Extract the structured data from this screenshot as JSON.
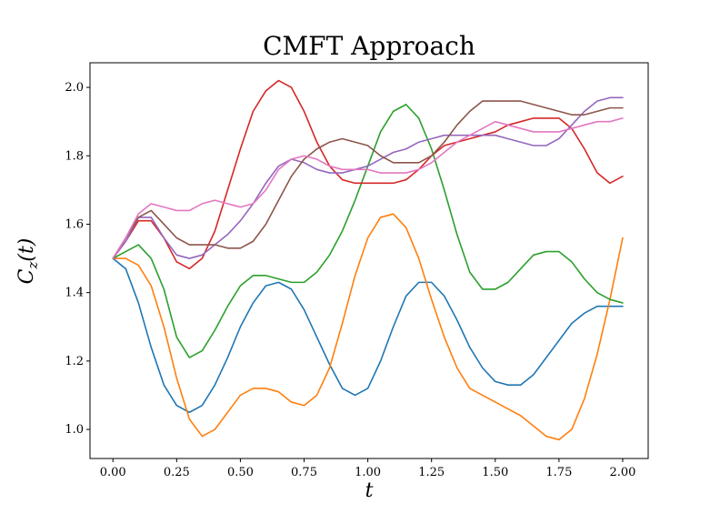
{
  "chart_data": {
    "type": "line",
    "title": "CMFT Approach",
    "xlabel": "t",
    "ylabel_main": "C",
    "ylabel_sub": "z",
    "ylabel_arg": "(t)",
    "xlim": [
      -0.09,
      2.1
    ],
    "ylim": [
      0.915,
      2.072
    ],
    "xticks": [
      0.0,
      0.25,
      0.5,
      0.75,
      1.0,
      1.25,
      1.5,
      1.75,
      2.0
    ],
    "xtick_labels": [
      "0.00",
      "0.25",
      "0.50",
      "0.75",
      "1.00",
      "1.25",
      "1.50",
      "1.75",
      "2.00"
    ],
    "yticks": [
      1.0,
      1.2,
      1.4,
      1.6,
      1.8,
      2.0
    ],
    "ytick_labels": [
      "1.0",
      "1.2",
      "1.4",
      "1.6",
      "1.8",
      "2.0"
    ],
    "grid": false,
    "legend": "none",
    "series": [
      {
        "color": "#1f77b4",
        "x": [
          0.0,
          0.05,
          0.1,
          0.15,
          0.2,
          0.25,
          0.3,
          0.35,
          0.4,
          0.45,
          0.5,
          0.55,
          0.6,
          0.65,
          0.7,
          0.75,
          0.8,
          0.85,
          0.9,
          0.95,
          1.0,
          1.05,
          1.1,
          1.15,
          1.2,
          1.25,
          1.3,
          1.35,
          1.4,
          1.45,
          1.5,
          1.55,
          1.6,
          1.65,
          1.7,
          1.75,
          1.8,
          1.85,
          1.9,
          1.95,
          2.0
        ],
        "y": [
          1.5,
          1.47,
          1.37,
          1.24,
          1.13,
          1.07,
          1.05,
          1.07,
          1.13,
          1.21,
          1.3,
          1.37,
          1.42,
          1.43,
          1.41,
          1.35,
          1.27,
          1.19,
          1.12,
          1.1,
          1.12,
          1.2,
          1.3,
          1.39,
          1.43,
          1.43,
          1.39,
          1.32,
          1.24,
          1.18,
          1.14,
          1.13,
          1.13,
          1.16,
          1.21,
          1.26,
          1.31,
          1.34,
          1.36,
          1.36,
          1.36
        ]
      },
      {
        "color": "#ff7f0e",
        "x": [
          0.0,
          0.05,
          0.1,
          0.15,
          0.2,
          0.25,
          0.3,
          0.35,
          0.4,
          0.45,
          0.5,
          0.55,
          0.6,
          0.65,
          0.7,
          0.75,
          0.8,
          0.85,
          0.9,
          0.95,
          1.0,
          1.05,
          1.1,
          1.15,
          1.2,
          1.25,
          1.3,
          1.35,
          1.4,
          1.45,
          1.5,
          1.55,
          1.6,
          1.65,
          1.7,
          1.75,
          1.8,
          1.85,
          1.9,
          1.95,
          2.0
        ],
        "y": [
          1.5,
          1.5,
          1.48,
          1.42,
          1.3,
          1.15,
          1.03,
          0.98,
          1.0,
          1.05,
          1.1,
          1.12,
          1.12,
          1.11,
          1.08,
          1.07,
          1.1,
          1.18,
          1.31,
          1.45,
          1.56,
          1.62,
          1.63,
          1.59,
          1.5,
          1.38,
          1.27,
          1.18,
          1.12,
          1.1,
          1.08,
          1.06,
          1.04,
          1.01,
          0.98,
          0.97,
          1.0,
          1.09,
          1.22,
          1.38,
          1.56
        ]
      },
      {
        "color": "#2ca02c",
        "x": [
          0.0,
          0.05,
          0.1,
          0.15,
          0.2,
          0.25,
          0.3,
          0.35,
          0.4,
          0.45,
          0.5,
          0.55,
          0.6,
          0.65,
          0.7,
          0.75,
          0.8,
          0.85,
          0.9,
          0.95,
          1.0,
          1.05,
          1.1,
          1.15,
          1.2,
          1.25,
          1.3,
          1.35,
          1.4,
          1.45,
          1.5,
          1.55,
          1.6,
          1.65,
          1.7,
          1.75,
          1.8,
          1.85,
          1.9,
          1.95,
          2.0
        ],
        "y": [
          1.5,
          1.52,
          1.54,
          1.5,
          1.41,
          1.27,
          1.21,
          1.23,
          1.29,
          1.36,
          1.42,
          1.45,
          1.45,
          1.44,
          1.43,
          1.43,
          1.46,
          1.51,
          1.58,
          1.67,
          1.77,
          1.87,
          1.93,
          1.95,
          1.91,
          1.82,
          1.7,
          1.57,
          1.46,
          1.41,
          1.41,
          1.43,
          1.47,
          1.51,
          1.52,
          1.52,
          1.49,
          1.44,
          1.4,
          1.38,
          1.37
        ]
      },
      {
        "color": "#d62728",
        "x": [
          0.0,
          0.05,
          0.1,
          0.15,
          0.2,
          0.25,
          0.3,
          0.35,
          0.4,
          0.45,
          0.5,
          0.55,
          0.6,
          0.65,
          0.7,
          0.75,
          0.8,
          0.85,
          0.9,
          0.95,
          1.0,
          1.05,
          1.1,
          1.15,
          1.2,
          1.25,
          1.3,
          1.35,
          1.4,
          1.45,
          1.5,
          1.55,
          1.6,
          1.65,
          1.7,
          1.75,
          1.8,
          1.85,
          1.9,
          1.95,
          2.0
        ],
        "y": [
          1.5,
          1.55,
          1.61,
          1.61,
          1.56,
          1.49,
          1.47,
          1.5,
          1.58,
          1.7,
          1.82,
          1.93,
          1.99,
          2.02,
          2.0,
          1.93,
          1.84,
          1.77,
          1.73,
          1.72,
          1.72,
          1.72,
          1.72,
          1.73,
          1.76,
          1.8,
          1.83,
          1.84,
          1.85,
          1.86,
          1.87,
          1.89,
          1.9,
          1.91,
          1.91,
          1.91,
          1.88,
          1.82,
          1.75,
          1.72,
          1.74
        ]
      },
      {
        "color": "#9467bd",
        "x": [
          0.0,
          0.05,
          0.1,
          0.15,
          0.2,
          0.25,
          0.3,
          0.35,
          0.4,
          0.45,
          0.5,
          0.55,
          0.6,
          0.65,
          0.7,
          0.75,
          0.8,
          0.85,
          0.9,
          0.95,
          1.0,
          1.05,
          1.1,
          1.15,
          1.2,
          1.25,
          1.3,
          1.35,
          1.4,
          1.45,
          1.5,
          1.55,
          1.6,
          1.65,
          1.7,
          1.75,
          1.8,
          1.85,
          1.9,
          1.95,
          2.0
        ],
        "y": [
          1.5,
          1.55,
          1.62,
          1.62,
          1.56,
          1.51,
          1.5,
          1.51,
          1.54,
          1.57,
          1.61,
          1.66,
          1.72,
          1.77,
          1.79,
          1.78,
          1.76,
          1.75,
          1.75,
          1.76,
          1.77,
          1.79,
          1.81,
          1.82,
          1.84,
          1.85,
          1.86,
          1.86,
          1.86,
          1.86,
          1.86,
          1.85,
          1.84,
          1.83,
          1.83,
          1.85,
          1.89,
          1.93,
          1.96,
          1.97,
          1.97
        ]
      },
      {
        "color": "#8c564b",
        "x": [
          0.0,
          0.05,
          0.1,
          0.15,
          0.2,
          0.25,
          0.3,
          0.35,
          0.4,
          0.45,
          0.5,
          0.55,
          0.6,
          0.65,
          0.7,
          0.75,
          0.8,
          0.85,
          0.9,
          0.95,
          1.0,
          1.05,
          1.1,
          1.15,
          1.2,
          1.25,
          1.3,
          1.35,
          1.4,
          1.45,
          1.5,
          1.55,
          1.6,
          1.65,
          1.7,
          1.75,
          1.8,
          1.85,
          1.9,
          1.95,
          2.0
        ],
        "y": [
          1.5,
          1.56,
          1.62,
          1.64,
          1.6,
          1.56,
          1.54,
          1.54,
          1.54,
          1.53,
          1.53,
          1.55,
          1.6,
          1.67,
          1.74,
          1.79,
          1.82,
          1.84,
          1.85,
          1.84,
          1.83,
          1.8,
          1.78,
          1.78,
          1.78,
          1.8,
          1.84,
          1.89,
          1.93,
          1.96,
          1.96,
          1.96,
          1.96,
          1.95,
          1.94,
          1.93,
          1.92,
          1.92,
          1.93,
          1.94,
          1.94
        ]
      },
      {
        "color": "#e377c2",
        "x": [
          0.0,
          0.05,
          0.1,
          0.15,
          0.2,
          0.25,
          0.3,
          0.35,
          0.4,
          0.45,
          0.5,
          0.55,
          0.6,
          0.65,
          0.7,
          0.75,
          0.8,
          0.85,
          0.9,
          0.95,
          1.0,
          1.05,
          1.1,
          1.15,
          1.2,
          1.25,
          1.3,
          1.35,
          1.4,
          1.45,
          1.5,
          1.55,
          1.6,
          1.65,
          1.7,
          1.75,
          1.8,
          1.85,
          1.9,
          1.95,
          2.0
        ],
        "y": [
          1.5,
          1.56,
          1.63,
          1.66,
          1.65,
          1.64,
          1.64,
          1.66,
          1.67,
          1.66,
          1.65,
          1.66,
          1.7,
          1.76,
          1.79,
          1.8,
          1.79,
          1.77,
          1.76,
          1.76,
          1.76,
          1.75,
          1.75,
          1.75,
          1.76,
          1.78,
          1.81,
          1.84,
          1.86,
          1.88,
          1.9,
          1.89,
          1.88,
          1.87,
          1.87,
          1.87,
          1.88,
          1.89,
          1.9,
          1.9,
          1.91
        ]
      }
    ]
  }
}
